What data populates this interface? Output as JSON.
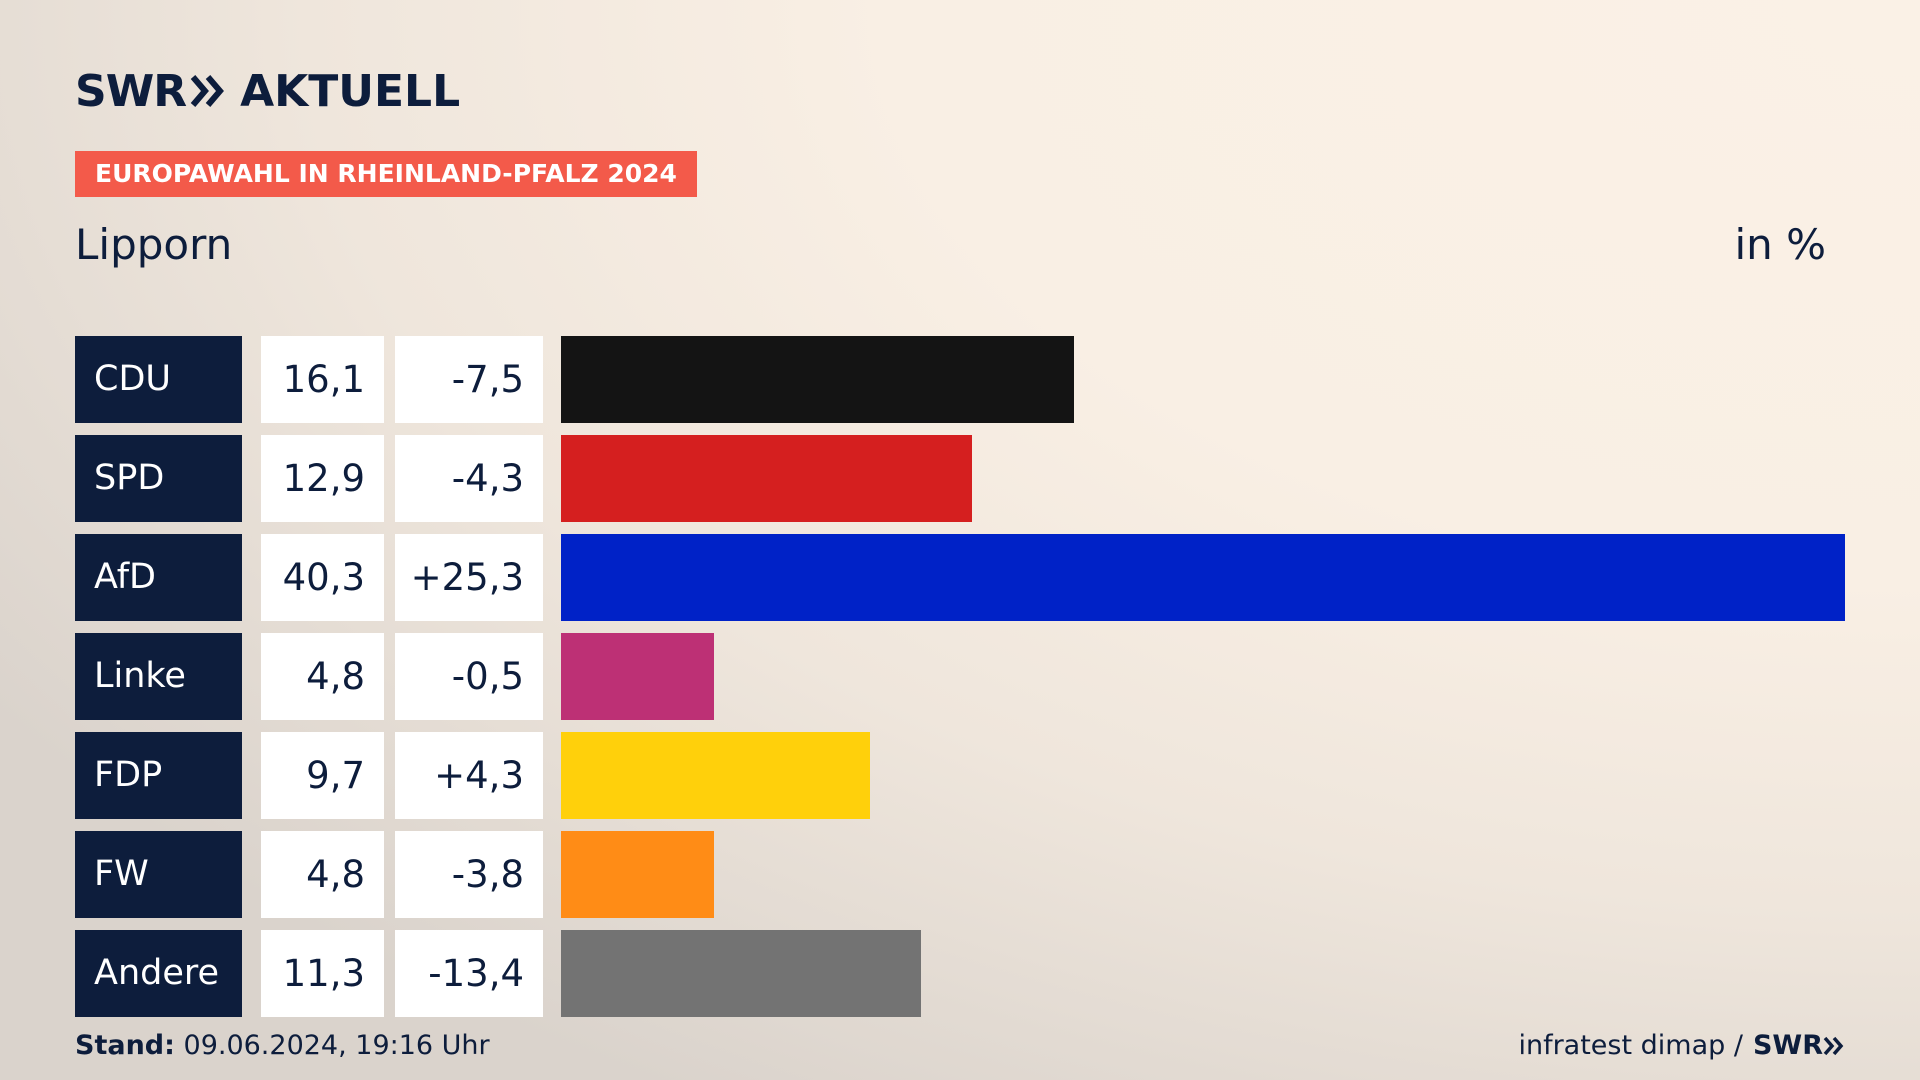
{
  "header": {
    "logo_brand": "SWR",
    "logo_product": "AKTUELL",
    "tag": "EUROPAWAHL IN RHEINLAND-PFALZ 2024",
    "place": "Lipporn",
    "unit": "in %"
  },
  "footer": {
    "stand_label": "Stand:",
    "stand_value": "09.06.2024, 19:16 Uhr",
    "source": "infratest dimap /",
    "source_brand": "SWR"
  },
  "chart_data": {
    "type": "bar",
    "orientation": "horizontal",
    "title": "EUROPAWAHL IN RHEINLAND-PFALZ 2024",
    "subtitle": "Lipporn",
    "unit": "in %",
    "xlim": [
      0,
      40.3
    ],
    "grid": false,
    "categories": [
      "CDU",
      "SPD",
      "AfD",
      "Linke",
      "FDP",
      "FW",
      "Andere"
    ],
    "values": [
      16.1,
      12.9,
      40.3,
      4.8,
      9.7,
      4.8,
      11.3
    ],
    "rows": [
      {
        "party": "CDU",
        "value": 16.1,
        "value_label": "16,1",
        "diff": -7.5,
        "diff_label": "-7,5",
        "color": "#141414"
      },
      {
        "party": "SPD",
        "value": 12.9,
        "value_label": "12,9",
        "diff": -4.3,
        "diff_label": "-4,3",
        "color": "#d51f1f"
      },
      {
        "party": "AfD",
        "value": 40.3,
        "value_label": "40,3",
        "diff": 25.3,
        "diff_label": "+25,3",
        "color": "#0022c7"
      },
      {
        "party": "Linke",
        "value": 4.8,
        "value_label": "4,8",
        "diff": -0.5,
        "diff_label": "-0,5",
        "color": "#bd3075"
      },
      {
        "party": "FDP",
        "value": 9.7,
        "value_label": "9,7",
        "diff": 4.3,
        "diff_label": "+4,3",
        "color": "#ffd00b"
      },
      {
        "party": "FW",
        "value": 4.8,
        "value_label": "4,8",
        "diff": -3.8,
        "diff_label": "-3,8",
        "color": "#ff8c16"
      },
      {
        "party": "Andere",
        "value": 11.3,
        "value_label": "11,3",
        "diff": -13.4,
        "diff_label": "-13,4",
        "color": "#737373"
      }
    ]
  }
}
